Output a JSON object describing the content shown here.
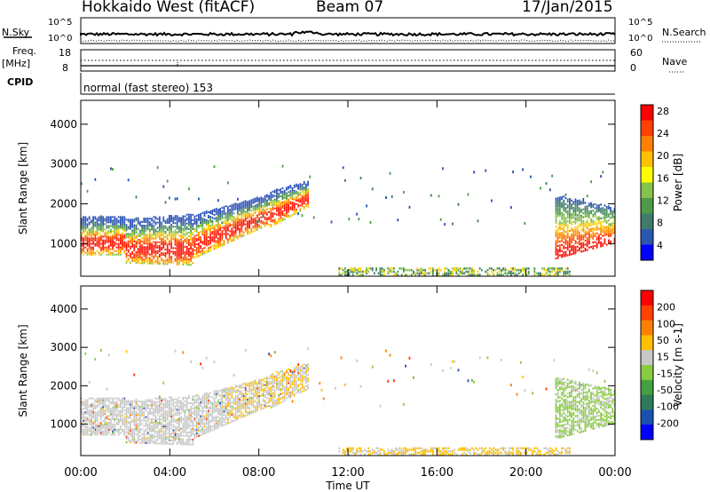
{
  "header": {
    "station": "Hokkaido West (fitACF)",
    "beam": "Beam 07",
    "date": "17/Jan/2015"
  },
  "noise_panel": {
    "left_label": "N.Sky",
    "right_label": "N.Search",
    "scale_top": "10^5",
    "scale_bottom": "10^0"
  },
  "freq_panel": {
    "label_line1": "Freq.",
    "label_line2": "[MHz]",
    "left_ticks": [
      "18",
      "8"
    ],
    "right_ticks": [
      "60",
      "0"
    ],
    "right_label": "Nave"
  },
  "cpid": {
    "label": "CPID",
    "text": "normal (fast stereo) 153"
  },
  "chart_data": [
    {
      "type": "heatmap",
      "name": "power",
      "ylabel": "Slant Range [km]",
      "yticks": [
        "1000",
        "2000",
        "3000",
        "4000"
      ],
      "ylim": [
        180,
        4600
      ],
      "xlim": [
        0,
        24
      ],
      "colorbar_label": "Power [dB]",
      "colorbar_ticks": [
        "4",
        "8",
        "12",
        "16",
        "20",
        "24",
        "28"
      ],
      "colorbar_colors": [
        "#0000ff",
        "#2a58b0",
        "#3f7a6a",
        "#4e9a48",
        "#86c34a",
        "#ffff00",
        "#ffc000",
        "#ff8000",
        "#ff4000",
        "#ff0000"
      ]
    },
    {
      "type": "heatmap",
      "name": "velocity",
      "ylabel": "Slant Range [km]",
      "yticks": [
        "1000",
        "2000",
        "3000",
        "4000"
      ],
      "ylim": [
        180,
        4600
      ],
      "xlim": [
        0,
        24
      ],
      "colorbar_label": "Velocity [m s-1]",
      "colorbar_ticks": [
        "200",
        "100",
        "50",
        "15",
        "-15",
        "-50",
        "-100",
        "-200"
      ],
      "colorbar_colors": [
        "#0000ff",
        "#1a50b0",
        "#2f7a5a",
        "#44a040",
        "#88cc40",
        "#c8c8c8",
        "#ffc000",
        "#ff8000",
        "#ff4000",
        "#ff0000"
      ]
    }
  ],
  "xaxis": {
    "label": "Time UT",
    "ticks": [
      "00:00",
      "04:00",
      "08:00",
      "12:00",
      "16:00",
      "20:00",
      "00:00"
    ]
  }
}
